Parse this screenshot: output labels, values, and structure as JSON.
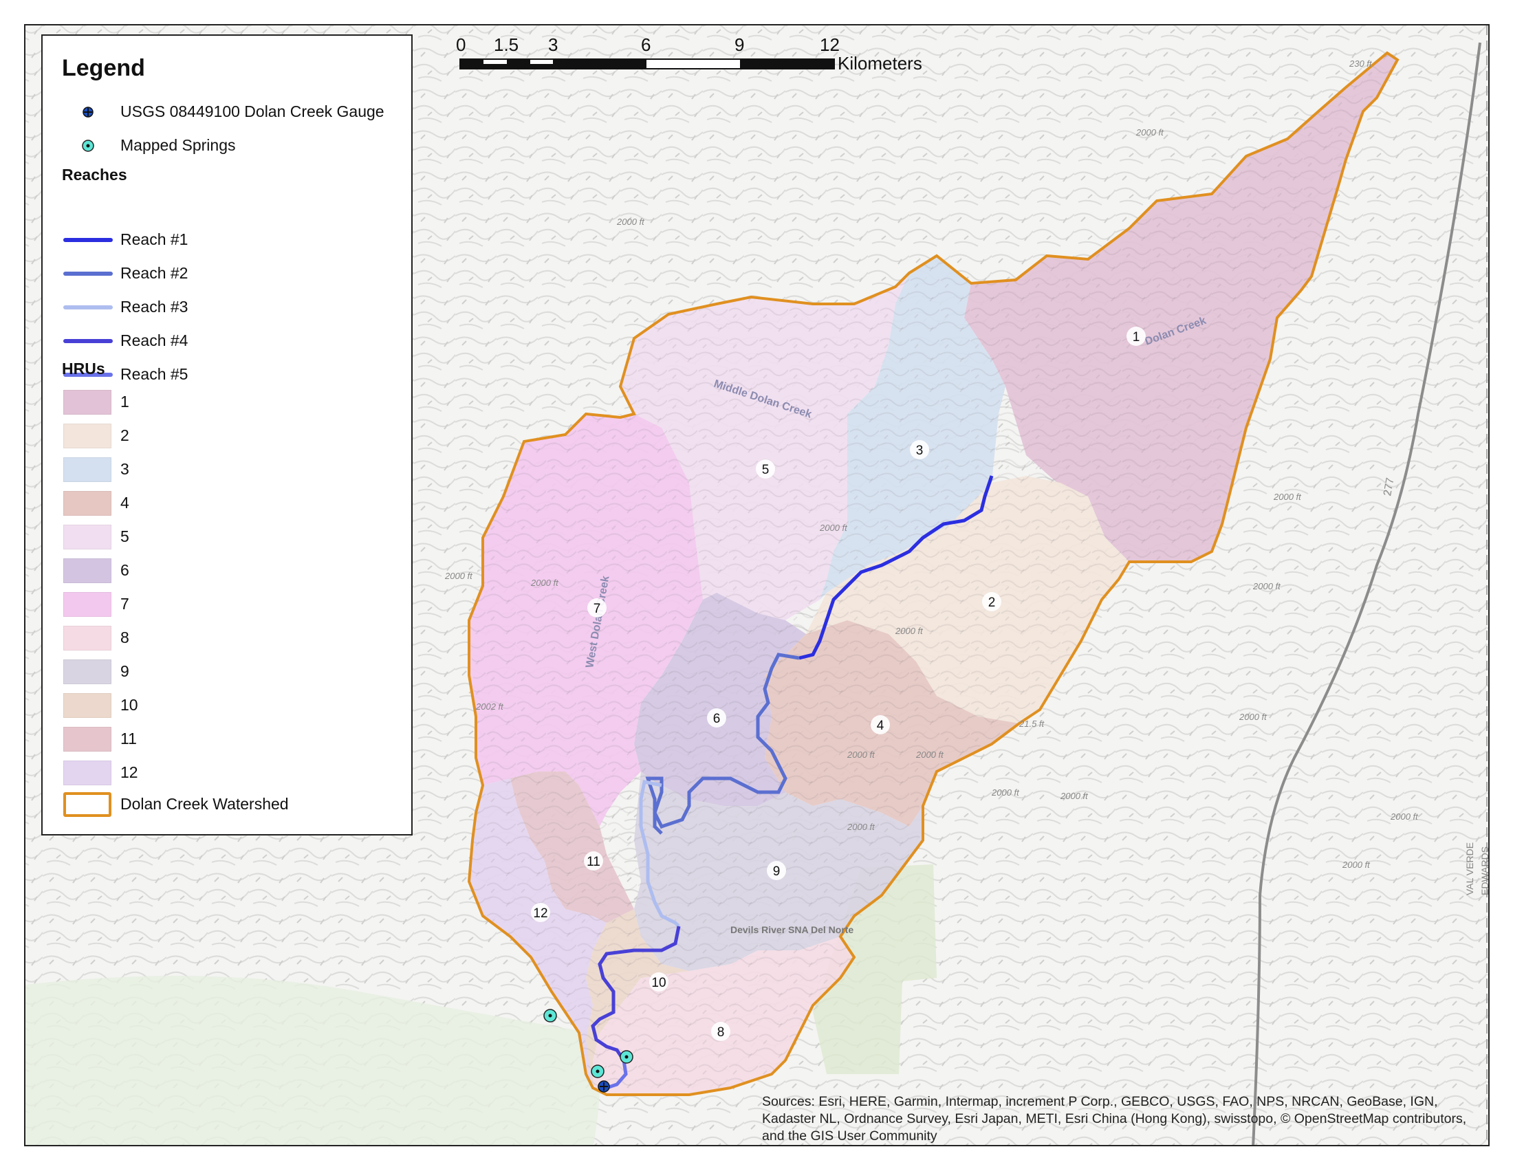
{
  "legend": {
    "title": "Legend",
    "gauge_label": "USGS 08449100 Dolan Creek Gauge",
    "springs_label": "Mapped Springs",
    "reaches_heading": "Reaches",
    "reaches": [
      {
        "label": "Reach #1",
        "color": "#2b2ee0"
      },
      {
        "label": "Reach #2",
        "color": "#5b6fd0"
      },
      {
        "label": "Reach #3",
        "color": "#aebdf0"
      },
      {
        "label": "Reach #4",
        "color": "#4840d6"
      },
      {
        "label": "Reach #5",
        "color": "#6a72ea"
      }
    ],
    "hrus_heading": "HRUs",
    "hrus": [
      {
        "label": "1",
        "color": "#e2c2d6"
      },
      {
        "label": "2",
        "color": "#f3e5dc"
      },
      {
        "label": "3",
        "color": "#d4e0f0"
      },
      {
        "label": "4",
        "color": "#e6c7c2"
      },
      {
        "label": "5",
        "color": "#f1def0"
      },
      {
        "label": "6",
        "color": "#d3c5e2"
      },
      {
        "label": "7",
        "color": "#f3c8ee"
      },
      {
        "label": "8",
        "color": "#f5dbe4"
      },
      {
        "label": "9",
        "color": "#d8d4e2"
      },
      {
        "label": "10",
        "color": "#ecd8cc"
      },
      {
        "label": "11",
        "color": "#e6c5cd"
      },
      {
        "label": "12",
        "color": "#e3d4f0"
      }
    ],
    "watershed_label": "Dolan Creek Watershed",
    "watershed_color": "#e09020"
  },
  "scalebar": {
    "ticks": [
      "0",
      "1.5",
      "3",
      "6",
      "9",
      "12"
    ],
    "unit": "Kilometers"
  },
  "map": {
    "hru_labels": [
      "1",
      "2",
      "3",
      "4",
      "5",
      "6",
      "7",
      "8",
      "9",
      "10",
      "11",
      "12"
    ],
    "feature_labels": {
      "dolan_creek": "Dolan Creek",
      "middle_dolan_creek": "Middle Dolan Creek",
      "west_dolan_creek": "West Dolan Creek",
      "devils_river": "Devils River SNA Del Norte"
    },
    "elevation_labels": [
      "230 ft",
      "2000 ft",
      "2000 ft",
      "2000 ft",
      "2000 ft",
      "2000 ft",
      "2002 ft",
      "2000 ft",
      "2000 ft",
      "2000 ft",
      "2000 ft",
      "2000 ft",
      "2000 ft",
      "2000 ft",
      "2000 ft",
      "2000 ft",
      "2000 ft",
      "2000 ft",
      "21.5 ft"
    ],
    "road_label": "277",
    "county_labels": [
      "VAL VERDE",
      "EDWARDS"
    ]
  },
  "sources": "Sources: Esri, HERE, Garmin, Intermap, increment P Corp., GEBCO, USGS, FAO, NPS, NRCAN, GeoBase, IGN, Kadaster NL, Ordnance Survey, Esri Japan, METI, Esri China (Hong Kong), swisstopo, © OpenStreetMap contributors, and the GIS User Community"
}
